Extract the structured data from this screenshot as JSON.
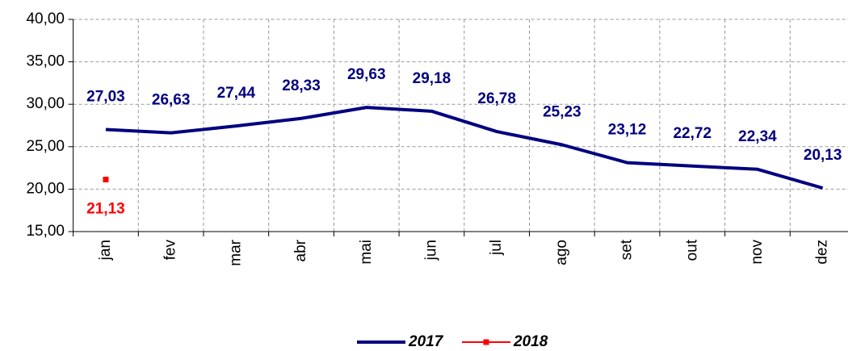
{
  "chart_data": {
    "type": "line",
    "categories": [
      "jan",
      "fev",
      "mar",
      "abr",
      "mai",
      "jun",
      "jul",
      "ago",
      "set",
      "out",
      "nov",
      "dez"
    ],
    "series": [
      {
        "name": "2017",
        "color": "#000080",
        "values": [
          27.03,
          26.63,
          27.44,
          28.33,
          29.63,
          29.18,
          26.78,
          25.23,
          23.12,
          22.72,
          22.34,
          20.13
        ],
        "value_labels": [
          "27,03",
          "26,63",
          "27,44",
          "28,33",
          "29,63",
          "29,18",
          "26,78",
          "25,23",
          "23,12",
          "22,72",
          "22,34",
          "20,13"
        ]
      },
      {
        "name": "2018",
        "color": "#ff0000",
        "values": [
          21.13,
          null,
          null,
          null,
          null,
          null,
          null,
          null,
          null,
          null,
          null,
          null
        ],
        "value_labels": [
          "21,13",
          null,
          null,
          null,
          null,
          null,
          null,
          null,
          null,
          null,
          null,
          null
        ]
      }
    ],
    "ylim": [
      15,
      40
    ],
    "yticks": [
      {
        "value": 15,
        "label": "15,00"
      },
      {
        "value": 20,
        "label": "20,00"
      },
      {
        "value": 25,
        "label": "25,00"
      },
      {
        "value": 30,
        "label": "30,00"
      },
      {
        "value": 35,
        "label": "35,00"
      },
      {
        "value": 40,
        "label": "40,00"
      }
    ],
    "grid": true,
    "legend": "bottom"
  }
}
